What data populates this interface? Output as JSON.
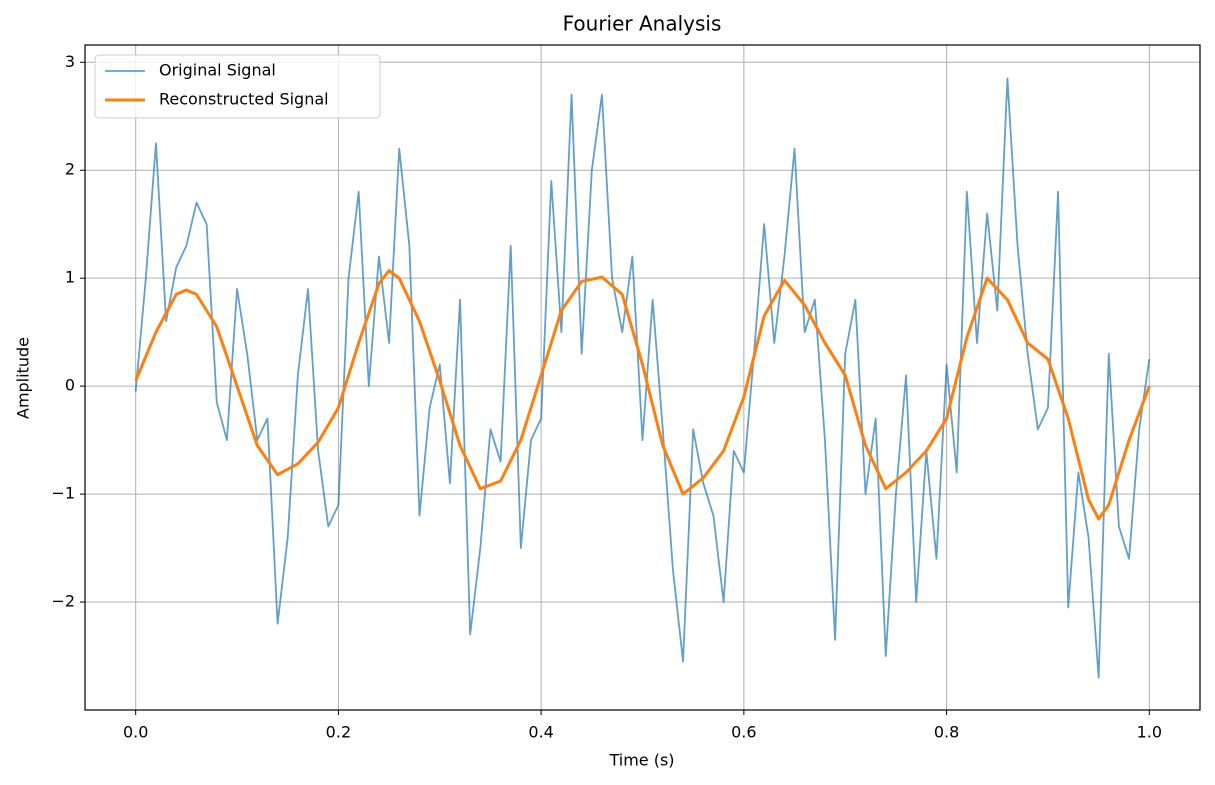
{
  "chart_data": {
    "type": "line",
    "title": "Fourier Analysis",
    "x_label": "Time (s)",
    "y_label": "Amplitude",
    "xlim": [
      -0.05,
      1.05
    ],
    "ylim": [
      -3.0,
      3.16
    ],
    "xticks": [
      {
        "value": 0,
        "label": "0.0"
      },
      {
        "value": 0.2,
        "label": "0.2"
      },
      {
        "value": 0.4,
        "label": "0.4"
      },
      {
        "value": 0.6,
        "label": "0.6"
      },
      {
        "value": 0.8,
        "label": "0.8"
      },
      {
        "value": 1,
        "label": "1.0"
      }
    ],
    "yticks": [
      {
        "value": -2,
        "label": "−2"
      },
      {
        "value": -1,
        "label": "−1"
      },
      0,
      1,
      2,
      3
    ],
    "grid": true,
    "legend": "upper left",
    "series": [
      {
        "name": "Original Signal",
        "color": "#1f77b4",
        "opacity": 0.7,
        "width": 1.8,
        "x": [
          0,
          0.01,
          0.02,
          0.03,
          0.04,
          0.05,
          0.06,
          0.07,
          0.08,
          0.09,
          0.1,
          0.11,
          0.12,
          0.13,
          0.14,
          0.15,
          0.16,
          0.17,
          0.18,
          0.19,
          0.2,
          0.21,
          0.22,
          0.23,
          0.24,
          0.25,
          0.26,
          0.27,
          0.28,
          0.29,
          0.3,
          0.31,
          0.32,
          0.33,
          0.34,
          0.35,
          0.36,
          0.37,
          0.38,
          0.39,
          0.4,
          0.41,
          0.42,
          0.43,
          0.44,
          0.45,
          0.46,
          0.47,
          0.48,
          0.49,
          0.5,
          0.51,
          0.52,
          0.53,
          0.54,
          0.55,
          0.56,
          0.57,
          0.58,
          0.59,
          0.6,
          0.61,
          0.62,
          0.63,
          0.64,
          0.65,
          0.66,
          0.67,
          0.68,
          0.69,
          0.7,
          0.71,
          0.72,
          0.73,
          0.74,
          0.75,
          0.76,
          0.77,
          0.78,
          0.79,
          0.8,
          0.81,
          0.82,
          0.83,
          0.84,
          0.85,
          0.86,
          0.87,
          0.88,
          0.89,
          0.9,
          0.91,
          0.92,
          0.93,
          0.94,
          0.95,
          0.96,
          0.97,
          0.98,
          0.99,
          1
        ],
        "values": [
          -0.05,
          1.0,
          2.25,
          0.6,
          1.1,
          1.3,
          1.7,
          1.5,
          -0.15,
          -0.5,
          0.9,
          0.3,
          -0.5,
          -0.3,
          -2.2,
          -1.4,
          0.1,
          0.9,
          -0.6,
          -1.3,
          -1.1,
          1.0,
          1.8,
          0.0,
          1.2,
          0.4,
          2.2,
          1.3,
          -1.2,
          -0.2,
          0.2,
          -0.9,
          0.8,
          -2.3,
          -1.5,
          -0.4,
          -0.7,
          1.3,
          -1.5,
          -0.5,
          -0.3,
          1.9,
          0.5,
          2.7,
          0.3,
          2.0,
          2.7,
          1.0,
          0.5,
          1.2,
          -0.5,
          0.8,
          -0.4,
          -1.7,
          -2.55,
          -0.4,
          -0.9,
          -1.2,
          -2.0,
          -0.6,
          -0.8,
          0.3,
          1.5,
          0.4,
          1.2,
          2.2,
          0.5,
          0.8,
          -0.5,
          -2.35,
          0.3,
          0.8,
          -1.0,
          -0.3,
          -2.5,
          -1.0,
          0.1,
          -2.0,
          -0.6,
          -1.6,
          0.2,
          -0.8,
          1.8,
          0.4,
          1.6,
          0.7,
          2.85,
          1.3,
          0.3,
          -0.4,
          -0.2,
          1.8,
          -2.05,
          -0.8,
          -1.4,
          -2.7,
          0.3,
          -1.3,
          -1.6,
          -0.4,
          0.25
        ]
      },
      {
        "name": "Reconstructed Signal",
        "color": "#ff7f0e",
        "opacity": 1,
        "width": 3,
        "x": [
          0,
          0.02,
          0.04,
          0.05,
          0.06,
          0.08,
          0.1,
          0.12,
          0.14,
          0.16,
          0.18,
          0.2,
          0.22,
          0.24,
          0.25,
          0.26,
          0.28,
          0.3,
          0.32,
          0.34,
          0.36,
          0.38,
          0.4,
          0.42,
          0.44,
          0.46,
          0.48,
          0.5,
          0.52,
          0.54,
          0.56,
          0.58,
          0.6,
          0.62,
          0.64,
          0.66,
          0.68,
          0.7,
          0.72,
          0.74,
          0.76,
          0.78,
          0.8,
          0.82,
          0.84,
          0.86,
          0.88,
          0.9,
          0.92,
          0.94,
          0.95,
          0.96,
          0.98,
          1
        ],
        "values": [
          0.05,
          0.5,
          0.85,
          0.89,
          0.85,
          0.55,
          0.0,
          -0.55,
          -0.82,
          -0.72,
          -0.52,
          -0.2,
          0.4,
          0.95,
          1.07,
          1.0,
          0.6,
          0.05,
          -0.55,
          -0.95,
          -0.88,
          -0.5,
          0.1,
          0.7,
          0.97,
          1.01,
          0.85,
          0.2,
          -0.55,
          -1.0,
          -0.85,
          -0.6,
          -0.1,
          0.65,
          0.98,
          0.75,
          0.4,
          0.1,
          -0.55,
          -0.95,
          -0.8,
          -0.6,
          -0.3,
          0.45,
          1.0,
          0.8,
          0.4,
          0.25,
          -0.3,
          -1.05,
          -1.23,
          -1.1,
          -0.5,
          0.0
        ]
      }
    ]
  }
}
